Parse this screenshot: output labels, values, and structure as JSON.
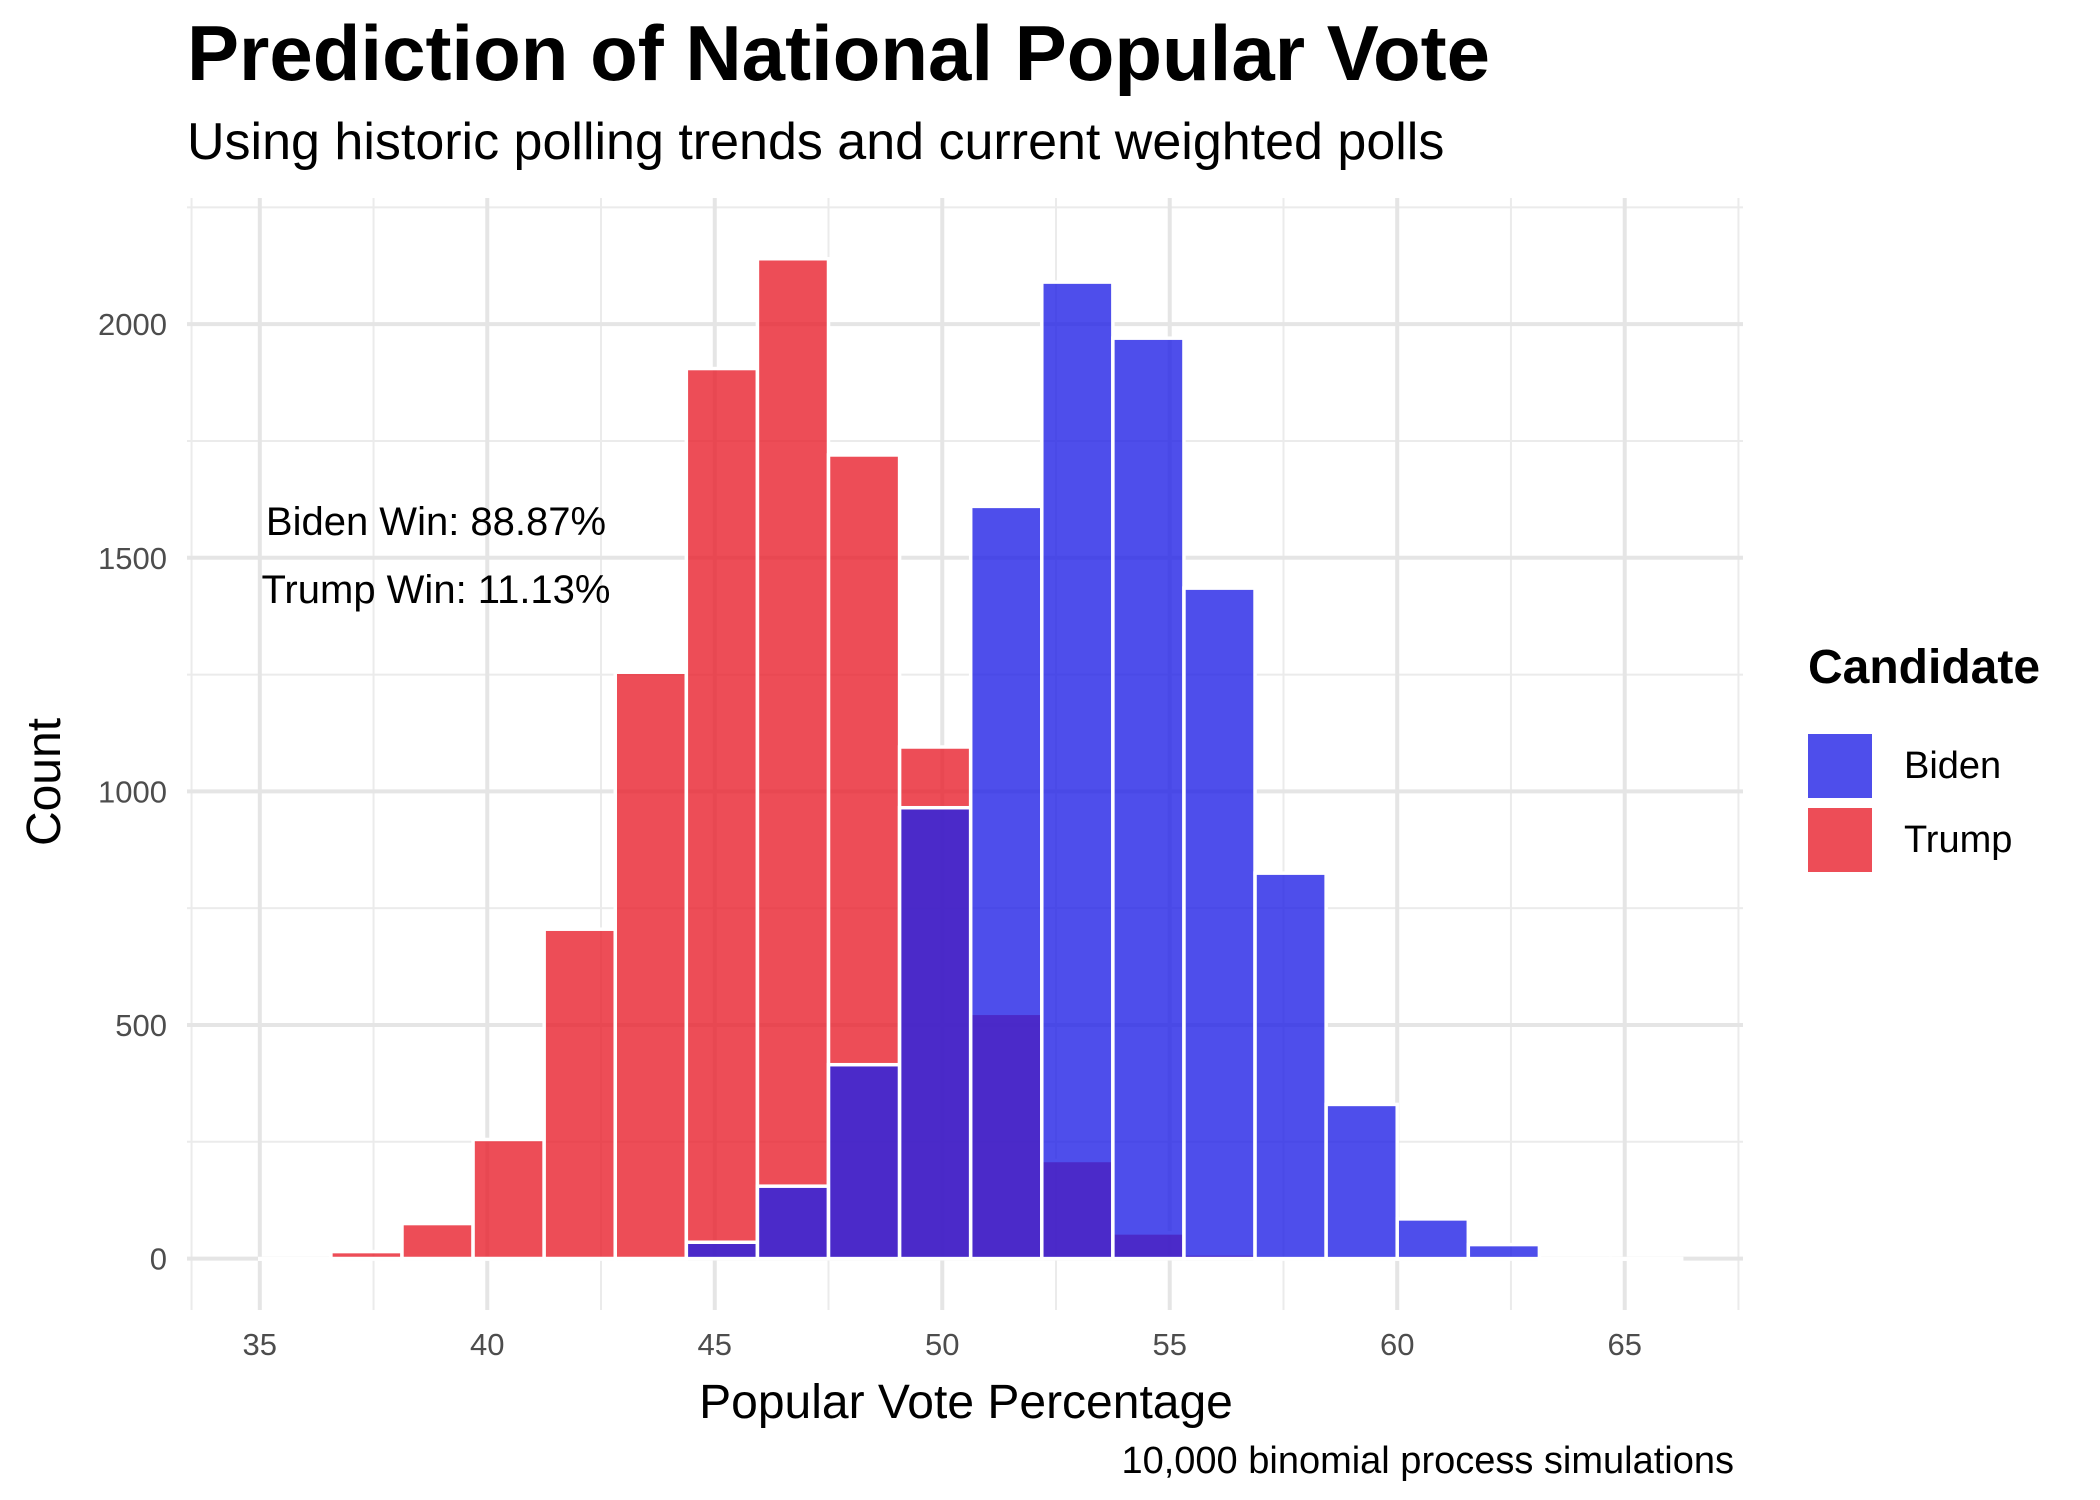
{
  "chart_data": {
    "type": "bar",
    "title": "Prediction of National Popular Vote",
    "subtitle": "Using historic polling trends and current weighted polls",
    "caption": "10,000 binomial process simulations",
    "xlabel": "Popular Vote Percentage",
    "ylabel": "Count",
    "xlim": [
      33.4,
      67.6
    ],
    "ylim": [
      -110,
      2270
    ],
    "x_ticks": [
      35,
      40,
      45,
      50,
      55,
      60,
      65
    ],
    "y_ticks": [
      0,
      500,
      1000,
      1500,
      2000
    ],
    "bin_width": 1.5625,
    "bin_starts": [
      35.0,
      36.5625,
      38.125,
      39.6875,
      41.25,
      42.8125,
      44.375,
      45.9375,
      47.5,
      49.0625,
      50.625,
      52.1875,
      53.75,
      55.3125,
      56.875,
      58.4375,
      60.0,
      61.5625,
      63.125,
      64.6875
    ],
    "series": [
      {
        "name": "Trump",
        "color": "#e8202d",
        "opacity": 0.8,
        "values": [
          0,
          15,
          75,
          255,
          705,
          1255,
          1905,
          2140,
          1720,
          1095,
          525,
          210,
          55,
          10,
          0,
          0,
          0,
          0,
          0,
          0
        ]
      },
      {
        "name": "Biden",
        "color": "#2222e6",
        "opacity": 0.8,
        "values": [
          0,
          0,
          0,
          0,
          0,
          0,
          35,
          155,
          415,
          965,
          1610,
          2090,
          1970,
          1435,
          825,
          330,
          85,
          30,
          0,
          0
        ]
      }
    ],
    "annotations": [
      "Biden Win: 88.87%",
      "Trump Win: 11.13%"
    ],
    "legend": {
      "title": "Candidate",
      "position": "right",
      "entries": [
        "Biden",
        "Trump"
      ]
    },
    "grid": true
  }
}
